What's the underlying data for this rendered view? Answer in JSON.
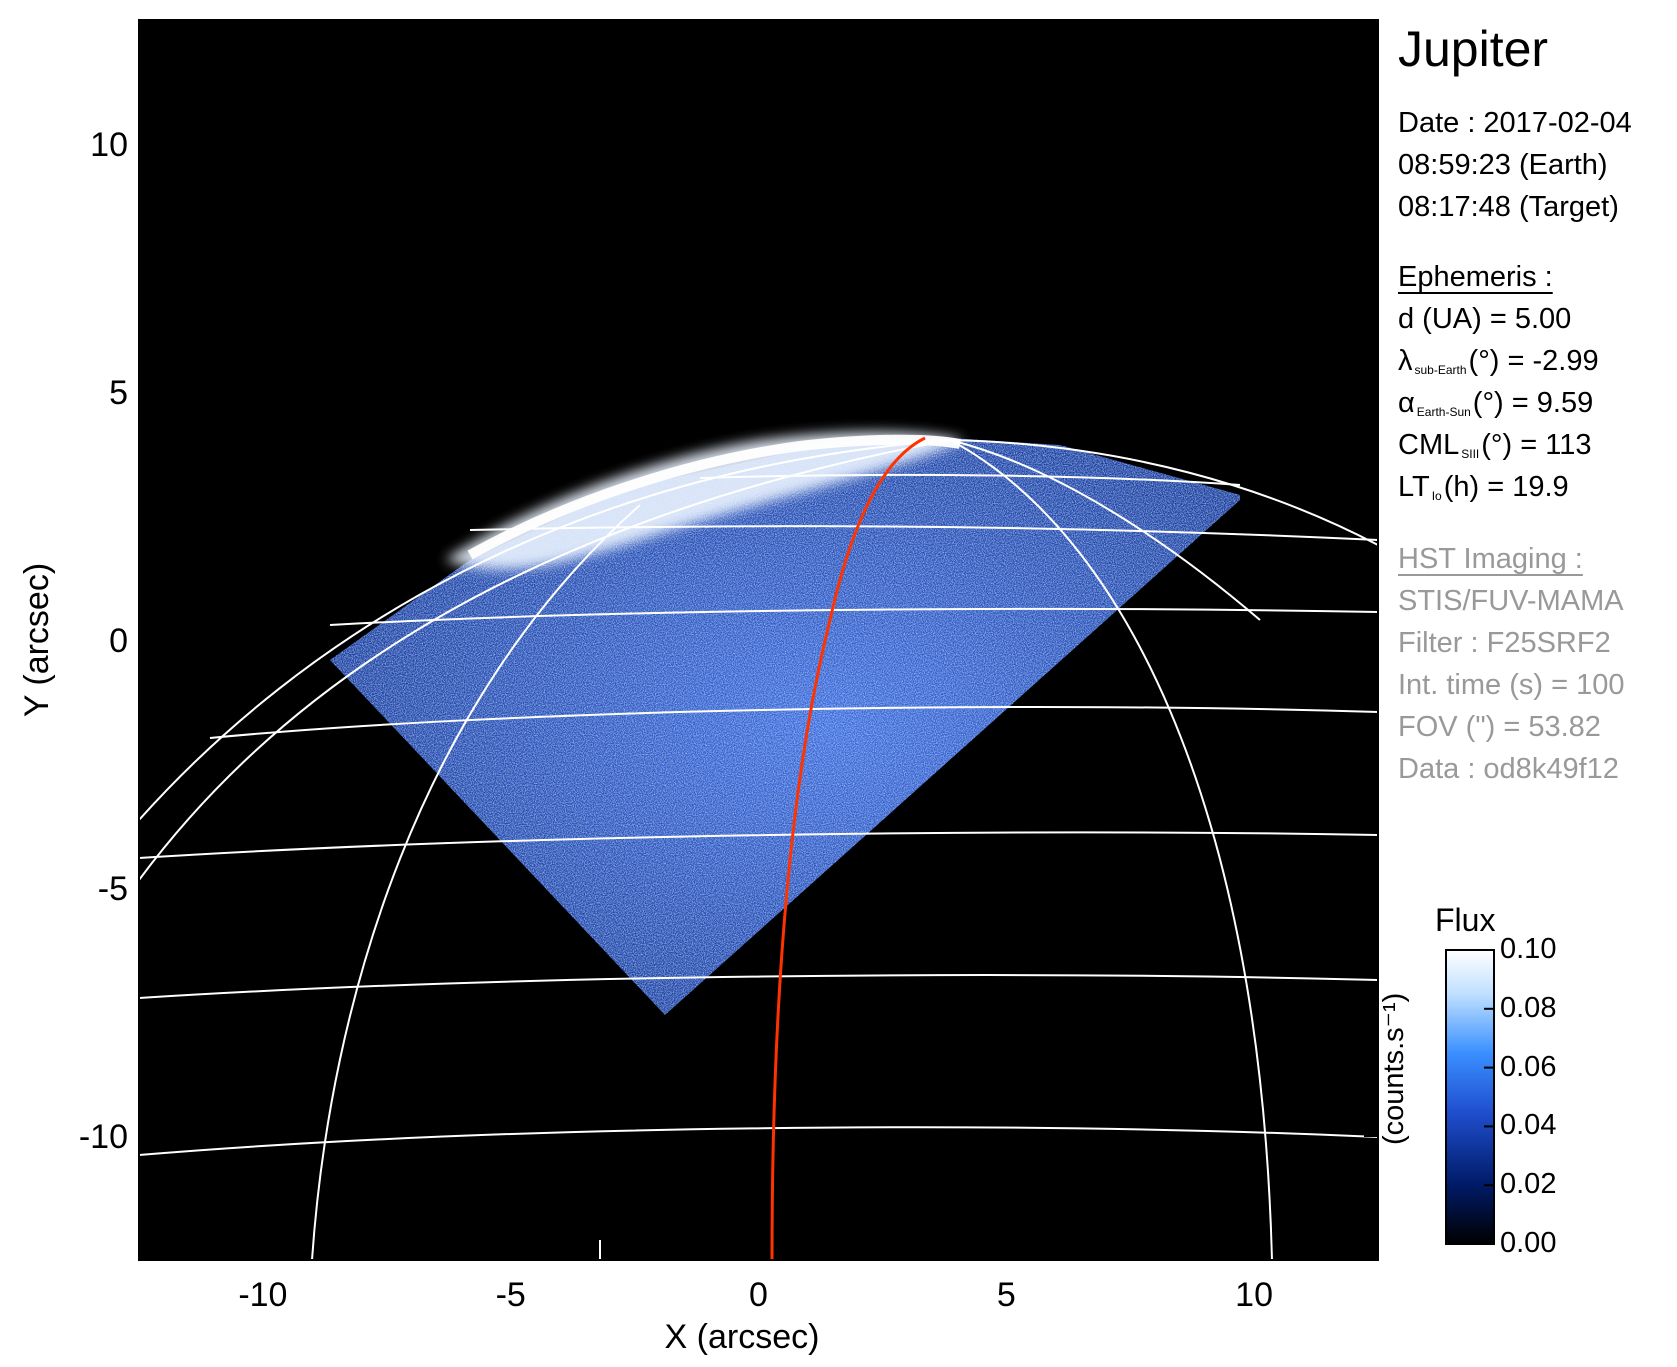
{
  "planet": "Jupiter",
  "observation": {
    "date_line": "Date : 2017-02-04",
    "earth_time": "08:59:23 (Earth)",
    "target_time": "08:17:48 (Target)"
  },
  "ephemeris": {
    "heading": "Ephemeris :",
    "d": "d (UA)    = 5.00",
    "lambda_symbol": "λ",
    "lambda_sub": "sub-Earth",
    "lambda_rest": "(°) = -2.99",
    "alpha_symbol": "α",
    "alpha_sub": "Earth-Sun",
    "alpha_rest": "(°) = 9.59",
    "cml_main": "CML",
    "cml_sub": "SIII",
    "cml_rest": "(°) = 113",
    "lt_main": "LT",
    "lt_sub": "Io",
    "lt_rest": "(h) = 19.9"
  },
  "imaging": {
    "heading": "HST Imaging :",
    "instrument": "STIS/FUV-MAMA",
    "filter": "Filter : F25SRF2",
    "int_time": "Int. time (s) = 100",
    "fov": "FOV (\") = 53.82",
    "data_id": "Data : od8k49f12"
  },
  "axes": {
    "xlabel": "X (arcsec)",
    "ylabel": "Y (arcsec)",
    "xticks": [
      "-10",
      "-5",
      "0",
      "5",
      "10"
    ],
    "yticks": [
      "10",
      "5",
      "0",
      "-5",
      "-10"
    ]
  },
  "colorbar": {
    "title": "Flux",
    "units": "(counts.s⁻¹)",
    "ticks": [
      "0.10",
      "0.08",
      "0.06",
      "0.04",
      "0.02",
      "0.00"
    ],
    "colors": [
      "#000000",
      "#001a66",
      "#1f4fcf",
      "#3a8fff",
      "#bfe0ff",
      "#ffffff"
    ]
  },
  "colors": {
    "background": "#000000",
    "grid": "#ffffff",
    "footprint": "#ff3300",
    "emission": "#2a5bd7"
  }
}
